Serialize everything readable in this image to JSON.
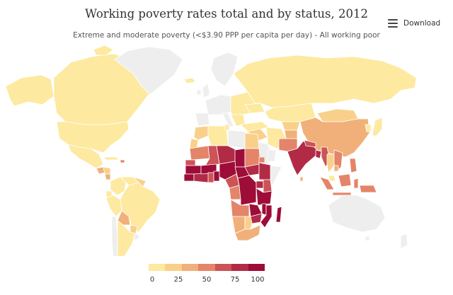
{
  "title": "Working poverty rates total and by status, 2012",
  "subtitle": "Extreme and moderate poverty (<$3.90 PPP per capita per day) - All working poor",
  "menu": {
    "download_label": "Download",
    "icon": "hamburger-menu-icon"
  },
  "colors": {
    "no_data": "#eeeeee",
    "border": "#ffffff",
    "scale": [
      "#fde9a0",
      "#f9d08a",
      "#f1b07a",
      "#e48468",
      "#cc5356",
      "#b22b46",
      "#9e0c38"
    ]
  },
  "legend": {
    "ticks": [
      "0",
      "25",
      "50",
      "75",
      "100"
    ]
  }
}
